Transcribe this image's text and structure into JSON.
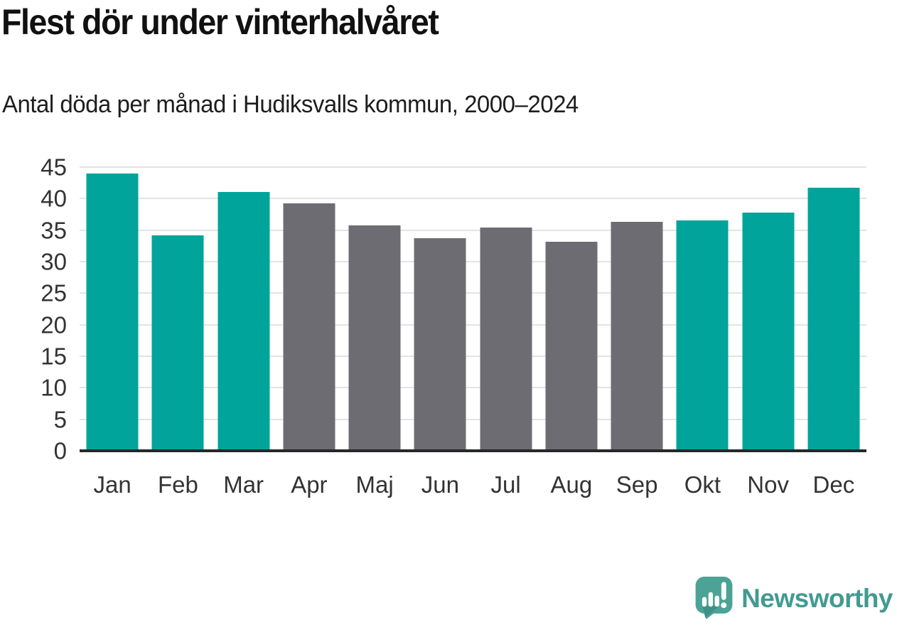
{
  "chart_data": {
    "type": "bar",
    "title": "Flest dör under vinterhalvåret",
    "subtitle": "Antal döda per månad i Hudiksvalls kommun, 2000–2024",
    "categories": [
      "Jan",
      "Feb",
      "Mar",
      "Apr",
      "Maj",
      "Jun",
      "Jul",
      "Aug",
      "Sep",
      "Okt",
      "Nov",
      "Dec"
    ],
    "values": [
      44.0,
      34.2,
      41.0,
      39.3,
      35.8,
      33.7,
      35.4,
      33.2,
      36.3,
      36.5,
      37.8,
      41.7
    ],
    "bar_color_keys": [
      "winter",
      "winter",
      "winter",
      "summer",
      "summer",
      "summer",
      "summer",
      "summer",
      "summer",
      "winter",
      "winter",
      "winter"
    ],
    "colors": {
      "winter": "#00a49a",
      "summer": "#6e6c73"
    },
    "highlighted_months": [
      "Jan",
      "Feb",
      "Mar",
      "Okt",
      "Nov",
      "Dec"
    ],
    "xlabel": "",
    "ylabel": "",
    "ylim": [
      0,
      45
    ],
    "yticks": [
      0,
      5,
      10,
      15,
      20,
      25,
      30,
      35,
      40,
      45
    ],
    "grid": true,
    "grid_color": "#e3e3e3",
    "axis_color": "#26282a",
    "tick_color": "#333333",
    "legend": "none"
  },
  "branding": {
    "wordmark": "Newsworthy",
    "wordmark_color": "#429a91",
    "icon": "newsworthy-bubble-chart-icon",
    "icon_bubble_color": "#4ba396",
    "icon_fold_color": "#3d9187",
    "icon_glyph_color": "#ffffff"
  }
}
